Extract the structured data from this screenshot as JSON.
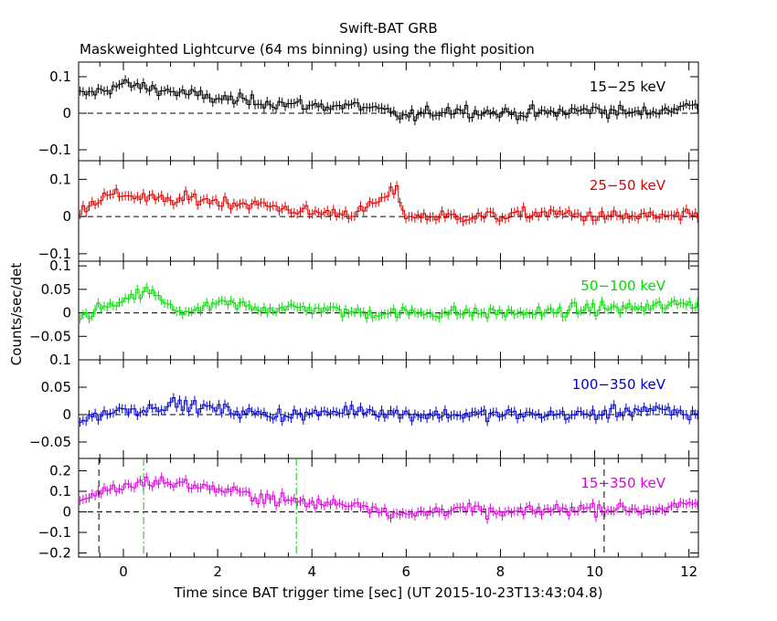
{
  "header": {
    "title": "Swift-BAT GRB",
    "subtitle": "Maskweighted Lightcurve (64 ms binning) using the flight position"
  },
  "chart_data": {
    "type": "line",
    "xlabel": "Time since BAT trigger time [sec] (UT 2015-10-23T13:43:04.8)",
    "ylabel": "Counts/sec/det",
    "xlim": [
      -0.95,
      12.2
    ],
    "x_ticks": [
      0,
      2,
      4,
      6,
      8,
      10,
      12
    ],
    "x_tick_labels": [
      "0",
      "2",
      "4",
      "6",
      "8",
      "10",
      "12"
    ],
    "bin_width_s": 0.064,
    "grid": false,
    "panels": [
      {
        "label": "15−25 keV",
        "color": "#000000",
        "ylim": [
          -0.13,
          0.14
        ],
        "y_ticks": [
          -0.1,
          0,
          0.1
        ],
        "y_tick_labels": [
          "−0.1",
          "0",
          "0.1"
        ],
        "series": {
          "x": [
            -0.9,
            -0.5,
            0.0,
            0.5,
            1.0,
            1.5,
            2.0,
            3.0,
            4.0,
            5.0,
            6.0,
            7.0,
            8.0,
            9.0,
            10.0,
            11.0,
            12.0
          ],
          "values": [
            0.05,
            0.06,
            0.08,
            0.07,
            0.06,
            0.05,
            0.04,
            0.03,
            0.02,
            0.02,
            -0.01,
            0.01,
            0.0,
            0.0,
            0.01,
            0.0,
            0.02
          ]
        }
      },
      {
        "label": "25−50 keV",
        "color": "#e00000",
        "ylim": [
          -0.12,
          0.15
        ],
        "y_ticks": [
          -0.1,
          0,
          0.1
        ],
        "y_tick_labels": [
          "−0.1",
          "0",
          "0.1"
        ],
        "series": {
          "x": [
            -0.9,
            -0.5,
            0.0,
            0.5,
            1.0,
            1.5,
            2.0,
            3.0,
            4.0,
            5.0,
            5.8,
            6.0,
            7.0,
            8.0,
            9.0,
            10.0,
            11.0,
            12.0
          ],
          "values": [
            0.02,
            0.05,
            0.06,
            0.05,
            0.04,
            0.05,
            0.04,
            0.03,
            0.01,
            0.01,
            0.07,
            0.0,
            0.0,
            0.0,
            0.01,
            0.0,
            0.0,
            0.0
          ]
        }
      },
      {
        "label": "50−100 keV",
        "color": "#00dd00",
        "ylim": [
          -0.1,
          0.11
        ],
        "y_ticks": [
          -0.05,
          0,
          0.05,
          0.1
        ],
        "y_tick_labels": [
          "−0.05",
          "0",
          "0.05",
          "0.1"
        ],
        "series": {
          "x": [
            -0.9,
            -0.5,
            0.0,
            0.5,
            1.0,
            1.5,
            2.0,
            3.0,
            4.0,
            5.0,
            6.0,
            7.0,
            8.0,
            9.0,
            10.0,
            11.0,
            12.0
          ],
          "values": [
            -0.01,
            0.01,
            0.02,
            0.05,
            0.01,
            0.0,
            0.02,
            0.01,
            0.01,
            0.0,
            0.0,
            0.0,
            0.0,
            0.0,
            0.01,
            0.01,
            0.02
          ]
        }
      },
      {
        "label": "100−350 keV",
        "color": "#0000cc",
        "ylim": [
          -0.08,
          0.1
        ],
        "y_ticks": [
          -0.05,
          0,
          0.05,
          0.1
        ],
        "y_tick_labels": [
          "−0.05",
          "0",
          "0.05",
          "0.1"
        ],
        "series": {
          "x": [
            -0.9,
            -0.5,
            0.0,
            0.5,
            1.0,
            2.0,
            3.0,
            4.0,
            5.0,
            6.0,
            7.0,
            8.0,
            9.0,
            10.0,
            11.0,
            12.0
          ],
          "values": [
            -0.01,
            0.0,
            0.01,
            0.01,
            0.02,
            0.01,
            0.0,
            0.0,
            0.01,
            0.0,
            0.0,
            0.0,
            0.0,
            0.0,
            0.01,
            0.0
          ]
        }
      },
      {
        "label": "15−350 keV",
        "color": "#dd00dd",
        "ylim": [
          -0.22,
          0.26
        ],
        "y_ticks": [
          -0.2,
          -0.1,
          0,
          0.1,
          0.2
        ],
        "y_tick_labels": [
          "−0.2",
          "−0.1",
          "0",
          "0.1",
          "0.2"
        ],
        "series": {
          "x": [
            -0.9,
            -0.5,
            0.0,
            0.5,
            1.0,
            1.5,
            2.0,
            3.0,
            4.0,
            5.0,
            6.0,
            7.0,
            8.0,
            9.0,
            10.0,
            11.0,
            12.0
          ],
          "values": [
            0.06,
            0.1,
            0.12,
            0.15,
            0.14,
            0.13,
            0.11,
            0.07,
            0.04,
            0.04,
            -0.02,
            0.02,
            -0.01,
            0.01,
            0.02,
            0.01,
            0.03
          ]
        },
        "vlines": [
          {
            "x": -0.52,
            "color": "#000000",
            "style": "dashed"
          },
          {
            "x": 0.43,
            "color": "#00cc00",
            "style": "dashdot"
          },
          {
            "x": 3.67,
            "color": "#00cc00",
            "style": "dashdot"
          },
          {
            "x": 10.2,
            "color": "#000000",
            "style": "dashed"
          }
        ]
      }
    ]
  }
}
